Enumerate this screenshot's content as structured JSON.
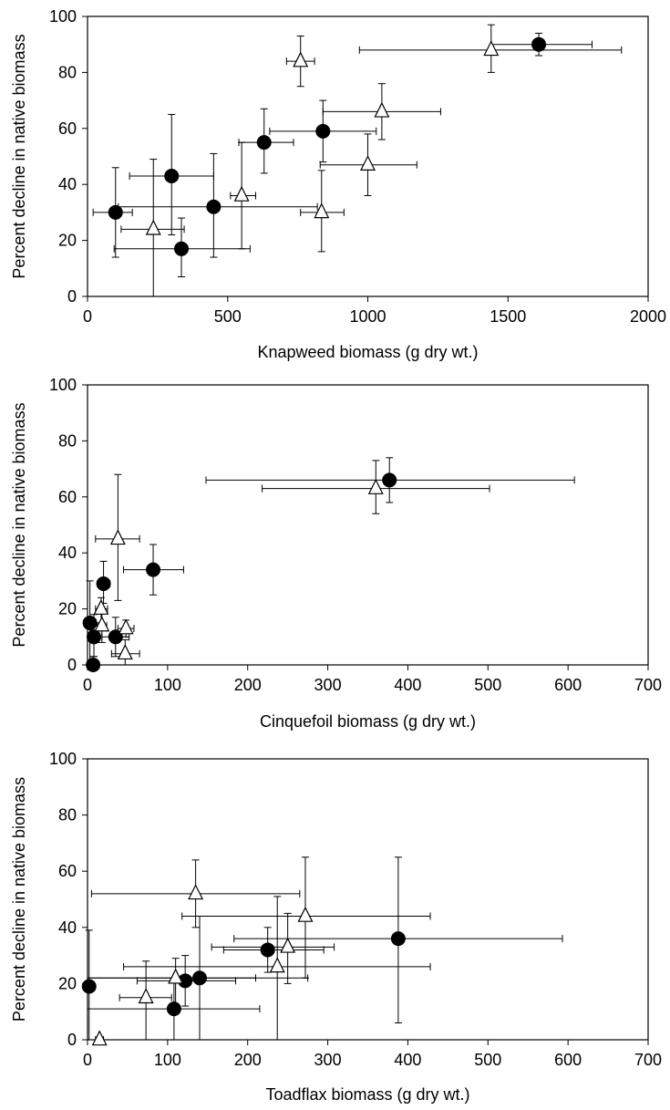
{
  "chart_data": [
    {
      "type": "scatter",
      "xlabel": "Knapweed biomass (g dry wt.)",
      "ylabel": "Percent decline in native biomass",
      "xlim": [
        0,
        2000
      ],
      "ylim": [
        0,
        100
      ],
      "xticks": [
        0,
        500,
        1000,
        1500,
        2000
      ],
      "yticks": [
        0,
        20,
        40,
        60,
        80,
        100
      ],
      "grid": false,
      "series": [
        {
          "marker": "circle-filled",
          "points": [
            {
              "x": 100,
              "y": 30,
              "xerr": [
                20,
                160
              ],
              "yerr": [
                14,
                46
              ]
            },
            {
              "x": 300,
              "y": 43,
              "xerr": [
                150,
                450
              ],
              "yerr": [
                22,
                65
              ]
            },
            {
              "x": 335,
              "y": 17,
              "xerr": [
                95,
                580
              ],
              "yerr": [
                7,
                28
              ]
            },
            {
              "x": 450,
              "y": 32,
              "xerr": [
                110,
                820
              ],
              "yerr": [
                14,
                51
              ]
            },
            {
              "x": 630,
              "y": 55,
              "xerr": [
                540,
                735
              ],
              "yerr": [
                44,
                67
              ]
            },
            {
              "x": 840,
              "y": 59,
              "xerr": [
                650,
                1030
              ],
              "yerr": [
                48,
                70
              ]
            },
            {
              "x": 1610,
              "y": 90,
              "xerr": [
                1440,
                1800
              ],
              "yerr": [
                86,
                94
              ]
            }
          ]
        },
        {
          "marker": "triangle-open",
          "points": [
            {
              "x": 235,
              "y": 24,
              "xerr": [
                120,
                345
              ],
              "yerr": [
                0,
                49
              ]
            },
            {
              "x": 550,
              "y": 36,
              "xerr": [
                510,
                600
              ],
              "yerr": [
                17,
                55
              ]
            },
            {
              "x": 760,
              "y": 84,
              "xerr": [
                710,
                810
              ],
              "yerr": [
                75,
                93
              ]
            },
            {
              "x": 835,
              "y": 30,
              "xerr": [
                760,
                915
              ],
              "yerr": [
                16,
                45
              ]
            },
            {
              "x": 1000,
              "y": 47,
              "xerr": [
                830,
                1175
              ],
              "yerr": [
                36,
                58
              ]
            },
            {
              "x": 1050,
              "y": 66,
              "xerr": [
                840,
                1260
              ],
              "yerr": [
                56,
                76
              ]
            },
            {
              "x": 1440,
              "y": 88,
              "xerr": [
                970,
                1905
              ],
              "yerr": [
                80,
                97
              ]
            }
          ]
        }
      ]
    },
    {
      "type": "scatter",
      "xlabel": "Cinquefoil biomass (g dry wt.)",
      "ylabel": "Percent decline in native biomass",
      "xlim": [
        0,
        700
      ],
      "ylim": [
        0,
        100
      ],
      "xticks": [
        0,
        100,
        200,
        300,
        400,
        500,
        600,
        700
      ],
      "yticks": [
        0,
        20,
        40,
        60,
        80,
        100
      ],
      "grid": false,
      "series": [
        {
          "marker": "circle-filled",
          "points": [
            {
              "x": 3,
              "y": 15,
              "xerr": [
                0,
                8
              ],
              "yerr": [
                0,
                30
              ]
            },
            {
              "x": 8,
              "y": 10,
              "xerr": [
                3,
                14
              ],
              "yerr": [
                3,
                18
              ]
            },
            {
              "x": 7,
              "y": 0,
              "xerr": [
                3,
                12
              ],
              "yerr": [
                0,
                3
              ]
            },
            {
              "x": 20,
              "y": 29,
              "xerr": [
                13,
                28
              ],
              "yerr": [
                22,
                37
              ]
            },
            {
              "x": 35,
              "y": 10,
              "xerr": [
                18,
                52
              ],
              "yerr": [
                3,
                17
              ]
            },
            {
              "x": 82,
              "y": 34,
              "xerr": [
                45,
                120
              ],
              "yerr": [
                25,
                43
              ]
            },
            {
              "x": 377,
              "y": 66,
              "xerr": [
                148,
                608
              ],
              "yerr": [
                58,
                74
              ]
            }
          ]
        },
        {
          "marker": "triangle-open",
          "points": [
            {
              "x": 17,
              "y": 20,
              "xerr": [
                10,
                25
              ],
              "yerr": [
                15,
                24
              ]
            },
            {
              "x": 18,
              "y": 14,
              "xerr": [
                12,
                24
              ],
              "yerr": [
                8,
                20
              ]
            },
            {
              "x": 38,
              "y": 45,
              "xerr": [
                10,
                65
              ],
              "yerr": [
                23,
                68
              ]
            },
            {
              "x": 48,
              "y": 13,
              "xerr": [
                38,
                58
              ],
              "yerr": [
                10,
                16
              ]
            },
            {
              "x": 47,
              "y": 4,
              "xerr": [
                30,
                65
              ],
              "yerr": [
                0,
                9
              ]
            },
            {
              "x": 360,
              "y": 63,
              "xerr": [
                218,
                502
              ],
              "yerr": [
                54,
                73
              ]
            }
          ]
        }
      ]
    },
    {
      "type": "scatter",
      "xlabel": "Toadflax biomass (g dry wt.)",
      "ylabel": "Percent decline in native biomass",
      "xlim": [
        0,
        700
      ],
      "ylim": [
        0,
        100
      ],
      "xticks": [
        0,
        100,
        200,
        300,
        400,
        500,
        600,
        700
      ],
      "yticks": [
        0,
        20,
        40,
        60,
        80,
        100
      ],
      "grid": false,
      "series": [
        {
          "marker": "circle-filled",
          "points": [
            {
              "x": 2,
              "y": 19,
              "xerr": [
                0,
                5
              ],
              "yerr": [
                0,
                39
              ]
            },
            {
              "x": 108,
              "y": 11,
              "xerr": [
                0,
                215
              ],
              "yerr": [
                0,
                22
              ]
            },
            {
              "x": 122,
              "y": 21,
              "xerr": [
                62,
                185
              ],
              "yerr": [
                12,
                30
              ]
            },
            {
              "x": 140,
              "y": 22,
              "xerr": [
                0,
                275
              ],
              "yerr": [
                0,
                44
              ]
            },
            {
              "x": 225,
              "y": 32,
              "xerr": [
                170,
                295
              ],
              "yerr": [
                24,
                40
              ]
            },
            {
              "x": 388,
              "y": 36,
              "xerr": [
                183,
                593
              ],
              "yerr": [
                6,
                65
              ]
            }
          ]
        },
        {
          "marker": "triangle-open",
          "points": [
            {
              "x": 15,
              "y": 0,
              "xerr": [
                10,
                20
              ],
              "yerr": [
                0,
                0
              ]
            },
            {
              "x": 73,
              "y": 15,
              "xerr": [
                40,
                105
              ],
              "yerr": [
                0,
                28
              ]
            },
            {
              "x": 110,
              "y": 22,
              "xerr": [
                0,
                210
              ],
              "yerr": [
                12,
                29
              ]
            },
            {
              "x": 135,
              "y": 52,
              "xerr": [
                5,
                265
              ],
              "yerr": [
                40,
                64
              ]
            },
            {
              "x": 237,
              "y": 26,
              "xerr": [
                45,
                428
              ],
              "yerr": [
                0,
                51
              ]
            },
            {
              "x": 250,
              "y": 33,
              "xerr": [
                155,
                308
              ],
              "yerr": [
                20,
                45
              ]
            },
            {
              "x": 272,
              "y": 44,
              "xerr": [
                118,
                428
              ],
              "yerr": [
                22,
                65
              ]
            }
          ]
        }
      ]
    }
  ]
}
